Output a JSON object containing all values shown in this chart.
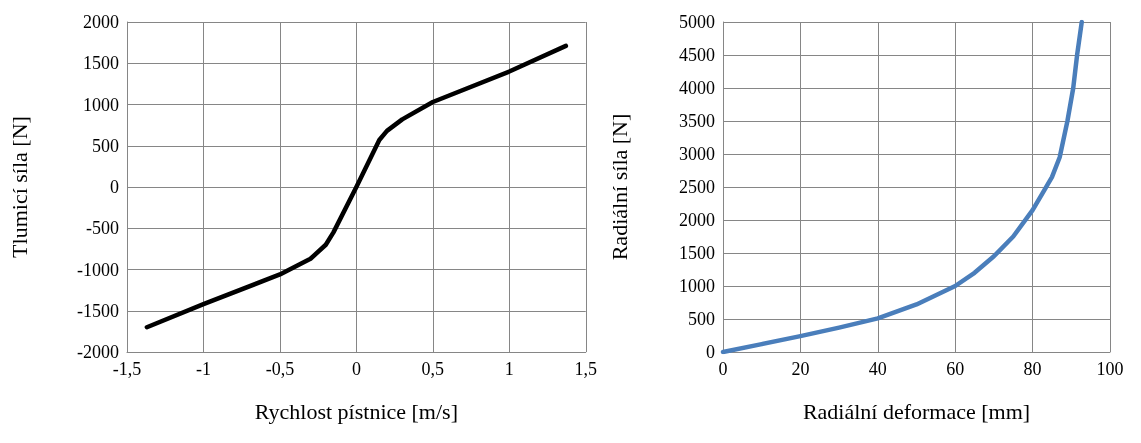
{
  "chart_data": [
    {
      "type": "line",
      "xlabel": "Rychlost pístnice [m/s]",
      "ylabel": "Tlumicí síla [N]",
      "xlim": [
        -1.5,
        1.5
      ],
      "xticks": [
        {
          "value": -1.5,
          "label": "-1,5"
        },
        -1,
        {
          "value": -0.5,
          "label": "-0,5"
        },
        0,
        {
          "value": 0.5,
          "label": "0,5"
        },
        1,
        {
          "value": 1.5,
          "label": "1,5"
        }
      ],
      "ylim": [
        -2000,
        2000
      ],
      "yticks": [
        -2000,
        -1500,
        -1000,
        -500,
        0,
        500,
        1000,
        1500,
        2000
      ],
      "grid": true,
      "marker": "none",
      "line_style": "solid",
      "series": [
        {
          "color": "#000000",
          "x": [
            -1.37,
            -1,
            -0.5,
            -0.3,
            -0.2,
            -0.15,
            0,
            0.15,
            0.2,
            0.3,
            0.5,
            1,
            1.37
          ],
          "values": [
            -1700,
            -1420,
            -1060,
            -870,
            -700,
            -550,
            0,
            570,
            680,
            820,
            1030,
            1400,
            1710
          ]
        }
      ]
    },
    {
      "type": "line",
      "xlabel": "Radiální deformace [mm]",
      "ylabel": "Radiální síla [N]",
      "xlim": [
        0,
        100
      ],
      "xticks": [
        0,
        20,
        40,
        60,
        80,
        100
      ],
      "ylim": [
        0,
        5000
      ],
      "yticks": [
        0,
        500,
        1000,
        1500,
        2000,
        2500,
        3000,
        3500,
        4000,
        4500,
        5000
      ],
      "grid": true,
      "marker": "none",
      "line_style": "solid",
      "series": [
        {
          "color": "#4a7ebb",
          "x": [
            0,
            10,
            20,
            30,
            40,
            50,
            60,
            65,
            70,
            75,
            80,
            83,
            85,
            87,
            89,
            90.5,
            91.5,
            92.7
          ],
          "values": [
            0,
            120,
            240,
            370,
            510,
            720,
            1000,
            1200,
            1450,
            1750,
            2150,
            2450,
            2650,
            2950,
            3500,
            4000,
            4500,
            5000
          ]
        }
      ]
    }
  ]
}
